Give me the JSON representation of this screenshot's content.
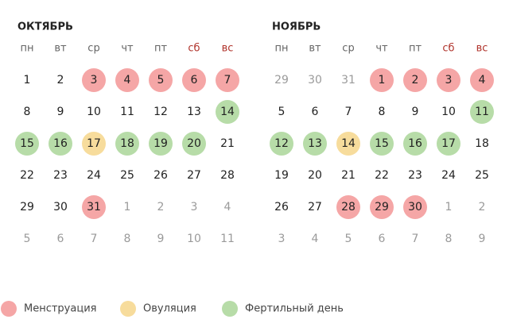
{
  "legend": [
    {
      "label": "Менструация",
      "color": "#f5a6a6"
    },
    {
      "label": "Овуляция",
      "color": "#f7dc9c"
    },
    {
      "label": "Фертильный день",
      "color": "#b7dca8"
    }
  ],
  "weekday_color": "#666666",
  "weekend_color": "#b0332b",
  "day_color": "#222222",
  "muted_color": "#9a9a9a",
  "months": [
    {
      "title": "ОКТЯБРЬ",
      "weekdays": [
        {
          "label": "пн"
        },
        {
          "label": "вт"
        },
        {
          "label": "ср"
        },
        {
          "label": "чт"
        },
        {
          "label": "пт"
        },
        {
          "label": "сб",
          "weekend": true
        },
        {
          "label": "вс",
          "weekend": true
        }
      ],
      "weeks": [
        [
          {
            "day": 1
          },
          {
            "day": 2
          },
          {
            "day": 3,
            "legend": 0
          },
          {
            "day": 4,
            "legend": 0
          },
          {
            "day": 5,
            "legend": 0
          },
          {
            "day": 6,
            "legend": 0
          },
          {
            "day": 7,
            "legend": 0
          }
        ],
        [
          {
            "day": 8
          },
          {
            "day": 9
          },
          {
            "day": 10
          },
          {
            "day": 11
          },
          {
            "day": 12
          },
          {
            "day": 13
          },
          {
            "day": 14,
            "legend": 2
          }
        ],
        [
          {
            "day": 15,
            "legend": 2
          },
          {
            "day": 16,
            "legend": 2
          },
          {
            "day": 17,
            "legend": 1
          },
          {
            "day": 18,
            "legend": 2
          },
          {
            "day": 19,
            "legend": 2
          },
          {
            "day": 20,
            "legend": 2
          },
          {
            "day": 21
          }
        ],
        [
          {
            "day": 22
          },
          {
            "day": 23
          },
          {
            "day": 24
          },
          {
            "day": 25
          },
          {
            "day": 26
          },
          {
            "day": 27
          },
          {
            "day": 28
          }
        ],
        [
          {
            "day": 29
          },
          {
            "day": 30
          },
          {
            "day": 31,
            "legend": 0
          },
          {
            "day": 1,
            "muted": true
          },
          {
            "day": 2,
            "muted": true
          },
          {
            "day": 3,
            "muted": true
          },
          {
            "day": 4,
            "muted": true
          }
        ],
        [
          {
            "day": 5,
            "muted": true
          },
          {
            "day": 6,
            "muted": true
          },
          {
            "day": 7,
            "muted": true
          },
          {
            "day": 8,
            "muted": true
          },
          {
            "day": 9,
            "muted": true
          },
          {
            "day": 10,
            "muted": true
          },
          {
            "day": 11,
            "muted": true
          }
        ]
      ]
    },
    {
      "title": "НОЯБРЬ",
      "weekdays": [
        {
          "label": "пн"
        },
        {
          "label": "вт"
        },
        {
          "label": "ср"
        },
        {
          "label": "чт"
        },
        {
          "label": "пт"
        },
        {
          "label": "сб",
          "weekend": true
        },
        {
          "label": "вс",
          "weekend": true
        }
      ],
      "weeks": [
        [
          {
            "day": 29,
            "muted": true
          },
          {
            "day": 30,
            "muted": true
          },
          {
            "day": 31,
            "muted": true
          },
          {
            "day": 1,
            "legend": 0
          },
          {
            "day": 2,
            "legend": 0
          },
          {
            "day": 3,
            "legend": 0
          },
          {
            "day": 4,
            "legend": 0
          }
        ],
        [
          {
            "day": 5
          },
          {
            "day": 6
          },
          {
            "day": 7
          },
          {
            "day": 8
          },
          {
            "day": 9
          },
          {
            "day": 10
          },
          {
            "day": 11,
            "legend": 2
          }
        ],
        [
          {
            "day": 12,
            "legend": 2
          },
          {
            "day": 13,
            "legend": 2
          },
          {
            "day": 14,
            "legend": 1
          },
          {
            "day": 15,
            "legend": 2
          },
          {
            "day": 16,
            "legend": 2
          },
          {
            "day": 17,
            "legend": 2
          },
          {
            "day": 18
          }
        ],
        [
          {
            "day": 19
          },
          {
            "day": 20
          },
          {
            "day": 21
          },
          {
            "day": 22
          },
          {
            "day": 23
          },
          {
            "day": 24
          },
          {
            "day": 25
          }
        ],
        [
          {
            "day": 26
          },
          {
            "day": 27
          },
          {
            "day": 28,
            "legend": 0
          },
          {
            "day": 29,
            "legend": 0
          },
          {
            "day": 30,
            "legend": 0
          },
          {
            "day": 1,
            "muted": true
          },
          {
            "day": 2,
            "muted": true
          }
        ],
        [
          {
            "day": 3,
            "muted": true
          },
          {
            "day": 4,
            "muted": true
          },
          {
            "day": 5,
            "muted": true
          },
          {
            "day": 6,
            "muted": true
          },
          {
            "day": 7,
            "muted": true
          },
          {
            "day": 8,
            "muted": true
          },
          {
            "day": 9,
            "muted": true
          }
        ]
      ]
    }
  ]
}
